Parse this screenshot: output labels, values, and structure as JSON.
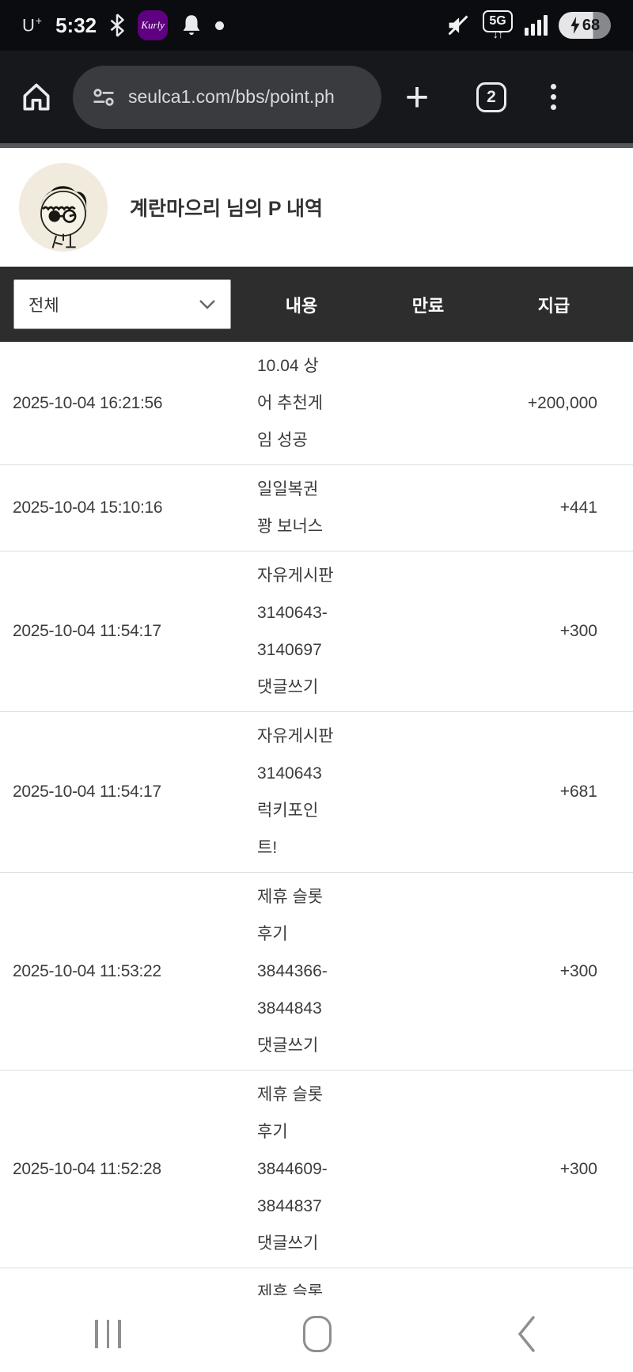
{
  "colors": {
    "kurly": "#5f0080",
    "header_band": "#2d2d2d",
    "toolbar": "#17181b",
    "status_bar": "#0b0c10"
  },
  "status_bar": {
    "carrier": "U",
    "carrier_sup": "+",
    "time": "5:32",
    "kurly_label": "Kurly",
    "network_label": "5G",
    "network_arrows": "↓↑",
    "battery_bolt": "⚡",
    "battery_percent": "68"
  },
  "browser": {
    "url": "seulca1.com/bbs/point.ph",
    "new_tab_label": "+",
    "tab_count": "2"
  },
  "page": {
    "title": "계란마으리 님의 P 내역",
    "filter": {
      "selected": "전체"
    },
    "table": {
      "columns": {
        "content": "내용",
        "expiry": "만료",
        "payment": "지급"
      },
      "rows": [
        {
          "datetime": "2025-10-04 16:21:56",
          "content_lines": [
            "10.04 상",
            "어 추천게",
            "임 성공"
          ],
          "expiry": "",
          "amount": "+200,000"
        },
        {
          "datetime": "2025-10-04 15:10:16",
          "content_lines": [
            "일일복권",
            "꽝 보너스"
          ],
          "expiry": "",
          "amount": "+441"
        },
        {
          "datetime": "2025-10-04 11:54:17",
          "content_lines": [
            "자유게시판",
            "3140643-",
            "3140697",
            "댓글쓰기"
          ],
          "expiry": "",
          "amount": "+300"
        },
        {
          "datetime": "2025-10-04 11:54:17",
          "content_lines": [
            "자유게시판",
            "3140643",
            "럭키포인",
            "트!"
          ],
          "expiry": "",
          "amount": "+681"
        },
        {
          "datetime": "2025-10-04 11:53:22",
          "content_lines": [
            "제휴 슬롯",
            "후기",
            "3844366-",
            "3844843",
            "댓글쓰기"
          ],
          "expiry": "",
          "amount": "+300"
        },
        {
          "datetime": "2025-10-04 11:52:28",
          "content_lines": [
            "제휴 슬롯",
            "후기",
            "3844609-",
            "3844837",
            "댓글쓰기"
          ],
          "expiry": "",
          "amount": "+300"
        },
        {
          "datetime": "",
          "content_lines": [
            "제휴 슬롯"
          ],
          "expiry": "",
          "amount": ""
        }
      ]
    }
  }
}
